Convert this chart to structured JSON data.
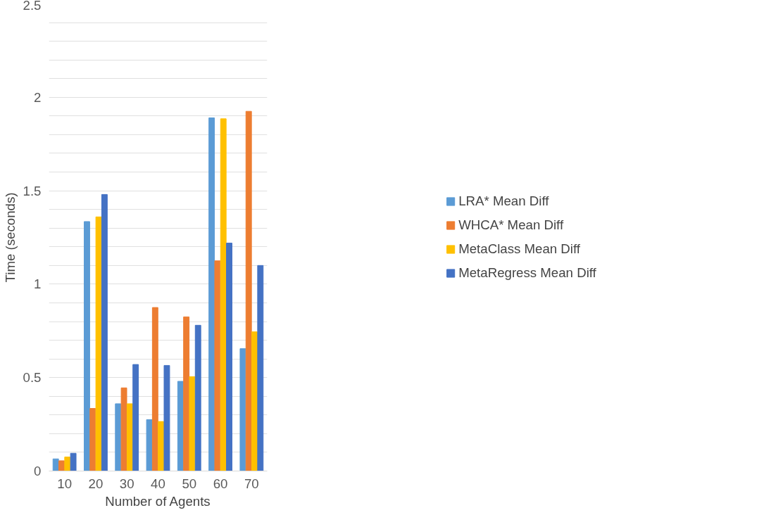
{
  "chart_data": {
    "type": "bar",
    "xlabel": "Number of Agents",
    "ylabel": "Time (seconds)",
    "categories": [
      "10",
      "20",
      "30",
      "40",
      "50",
      "60",
      "70"
    ],
    "series": [
      {
        "name": "LRA* Mean Diff",
        "color": "#5b9bd5",
        "values": [
          0.065,
          1.335,
          0.36,
          0.275,
          0.48,
          1.89,
          0.655
        ]
      },
      {
        "name": "WHCA* Mean Diff",
        "color": "#ed7d31",
        "values": [
          0.055,
          0.335,
          0.445,
          0.875,
          0.825,
          1.125,
          1.925
        ]
      },
      {
        "name": "MetaClass Mean Diff",
        "color": "#ffc000",
        "values": [
          0.075,
          1.36,
          0.36,
          0.265,
          0.505,
          1.885,
          0.745
        ]
      },
      {
        "name": "MetaRegress Mean Diff",
        "color": "#4472c4",
        "values": [
          0.095,
          1.48,
          0.57,
          0.565,
          0.78,
          1.22,
          1.1
        ]
      }
    ],
    "ylim": [
      0,
      2.5
    ],
    "yticks": [
      0,
      {
        "value": 0.1,
        "label": null
      },
      {
        "value": 0.2,
        "label": null
      },
      {
        "value": 0.3,
        "label": null
      },
      {
        "value": 0.4,
        "label": null
      },
      0.5,
      {
        "value": 0.6,
        "label": null
      },
      {
        "value": 0.7,
        "label": null
      },
      {
        "value": 0.8,
        "label": null
      },
      {
        "value": 0.9,
        "label": null
      },
      1,
      {
        "value": 1.1,
        "label": null
      },
      {
        "value": 1.2,
        "label": null
      },
      {
        "value": 1.3,
        "label": null
      },
      {
        "value": 1.4,
        "label": null
      },
      1.5,
      {
        "value": 1.6,
        "label": null
      },
      {
        "value": 1.7,
        "label": null
      },
      {
        "value": 1.8,
        "label": null
      },
      {
        "value": 1.9,
        "label": null
      },
      2,
      {
        "value": 2.1,
        "label": null
      },
      {
        "value": 2.2,
        "label": null
      },
      {
        "value": 2.3,
        "label": null
      },
      {
        "value": 2.4,
        "label": null
      },
      2.5
    ],
    "grid": "y",
    "legend": "right"
  }
}
